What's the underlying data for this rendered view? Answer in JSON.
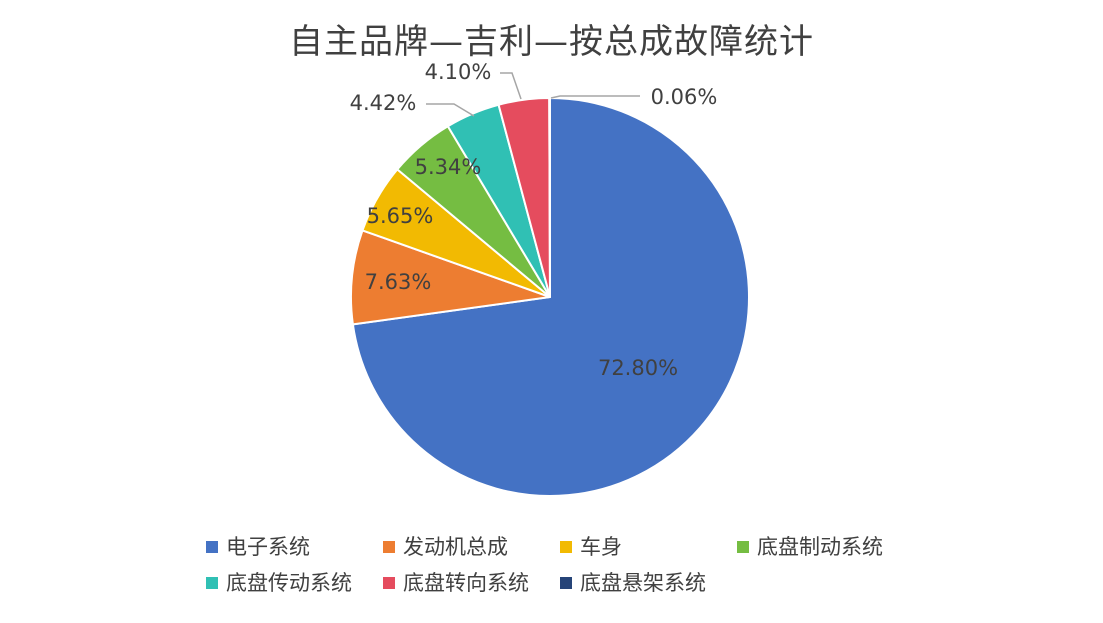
{
  "chart_data": {
    "type": "pie",
    "title": "自主品牌—吉利—按总成故障统计",
    "slices": [
      {
        "name": "电子系统",
        "value": 72.8,
        "label": "72.80%",
        "color": "#4472C4"
      },
      {
        "name": "发动机总成",
        "value": 7.63,
        "label": "7.63%",
        "color": "#ED7D31"
      },
      {
        "name": "车身",
        "value": 5.65,
        "label": "5.65%",
        "color": "#F2BA02"
      },
      {
        "name": "底盘制动系统",
        "value": 5.34,
        "label": "5.34%",
        "color": "#75BD42"
      },
      {
        "name": "底盘传动系统",
        "value": 4.42,
        "label": "4.42%",
        "color": "#30C0B4"
      },
      {
        "name": "底盘转向系统",
        "value": 4.1,
        "label": "4.10%",
        "color": "#E54C5E"
      },
      {
        "name": "底盘悬架系统",
        "value": 0.06,
        "label": "0.06%",
        "color": "#264478"
      }
    ],
    "legend_position": "bottom",
    "start_angle": "top, clockwise"
  }
}
